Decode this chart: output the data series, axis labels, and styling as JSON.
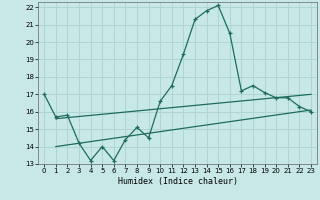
{
  "background_color": "#c8e8e8",
  "grid_color": "#aed4d4",
  "line_color": "#1e6b5e",
  "xlabel": "Humidex (Indice chaleur)",
  "xlim": [
    -0.5,
    23.5
  ],
  "ylim": [
    13,
    22.3
  ],
  "xticks": [
    0,
    1,
    2,
    3,
    4,
    5,
    6,
    7,
    8,
    9,
    10,
    11,
    12,
    13,
    14,
    15,
    16,
    17,
    18,
    19,
    20,
    21,
    22,
    23
  ],
  "yticks": [
    13,
    14,
    15,
    16,
    17,
    18,
    19,
    20,
    21,
    22
  ],
  "main_x": [
    0,
    1,
    2,
    3,
    4,
    5,
    6,
    7,
    8,
    9,
    10,
    11,
    12,
    13,
    14,
    15,
    16,
    17,
    18,
    19,
    20,
    21,
    22,
    23
  ],
  "main_y": [
    17.0,
    15.7,
    15.8,
    14.2,
    13.2,
    14.0,
    13.2,
    14.4,
    15.1,
    14.5,
    16.6,
    17.5,
    19.3,
    21.3,
    21.8,
    22.1,
    20.5,
    17.2,
    17.5,
    17.1,
    16.8,
    16.8,
    16.3,
    16.0
  ],
  "line1_x": [
    1,
    23
  ],
  "line1_y": [
    15.6,
    17.0
  ],
  "line2_x": [
    1,
    23
  ],
  "line2_y": [
    14.0,
    16.1
  ]
}
